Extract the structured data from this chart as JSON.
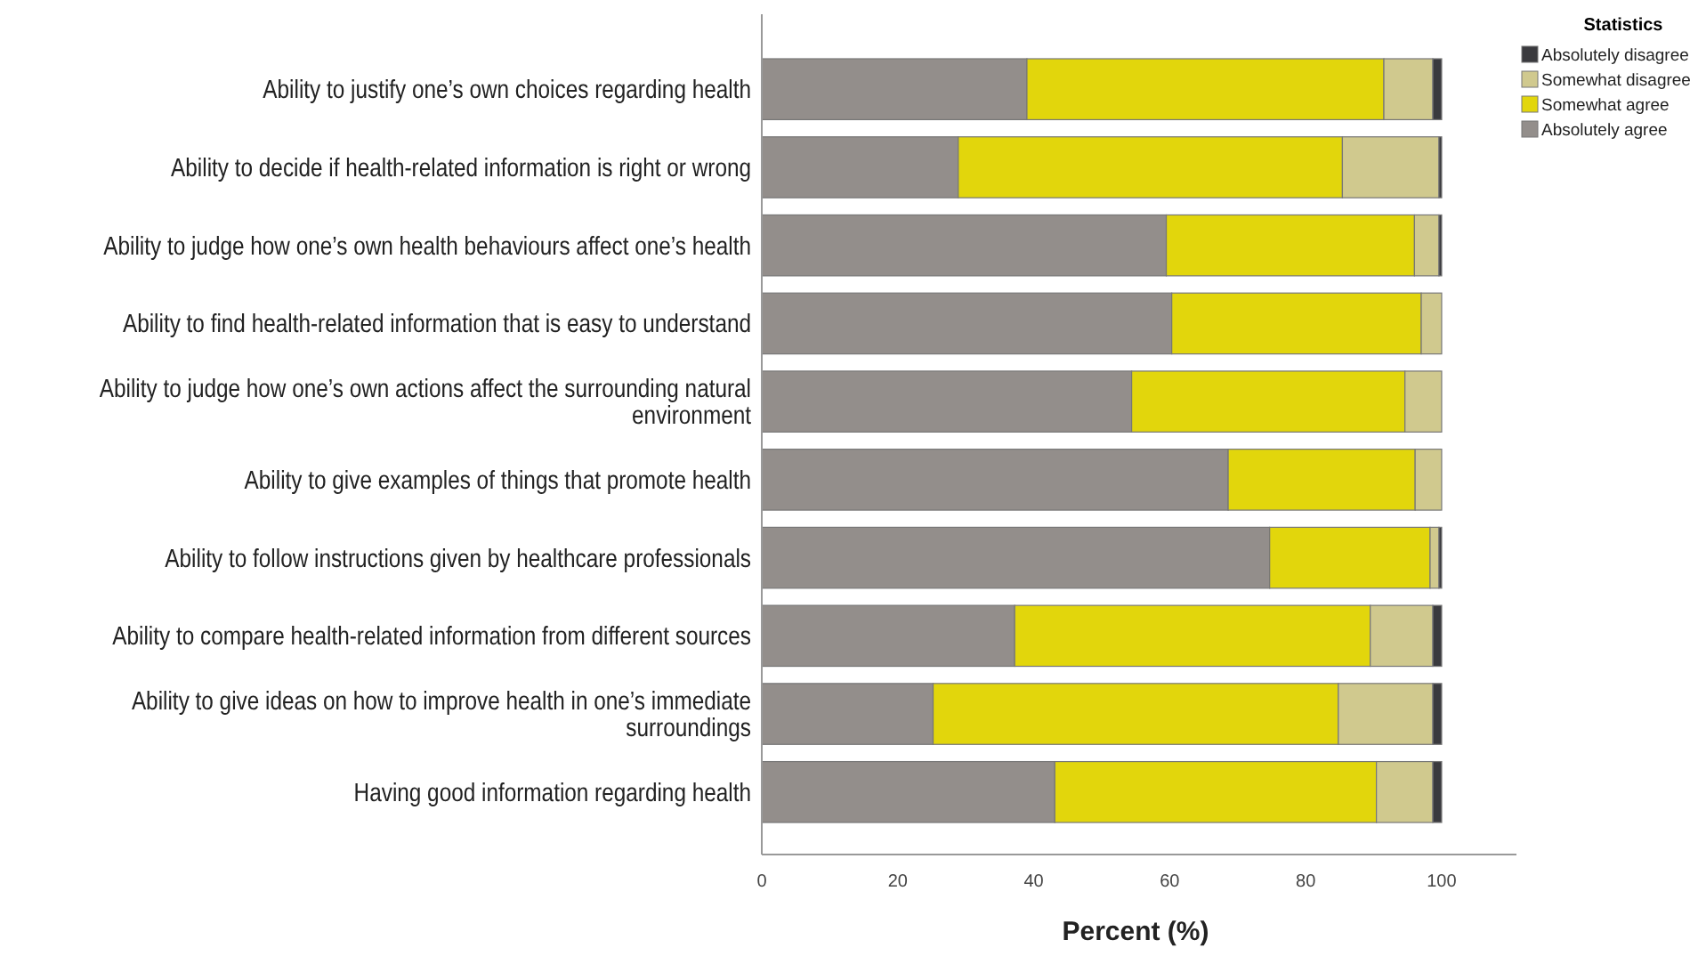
{
  "chart_data": {
    "type": "bar",
    "orientation": "horizontal",
    "stacked": true,
    "categories": [
      "Ability to justify one’s own choices regarding health",
      "Ability to decide if health-related information is right or wrong",
      "Ability to judge how one’s own health behaviours affect one’s health",
      "Ability to find health-related information that is easy to understand",
      "Ability to judge how one’s own actions affect the surrounding natural environment",
      "Ability to give examples of things that promote health",
      "Ability to follow instructions given by healthcare professionals",
      "Ability to compare health-related information from different sources",
      "Ability to give ideas on how to improve health in one’s immediate surroundings",
      "Having good information regarding health"
    ],
    "series": [
      {
        "name": "Absolutely agree",
        "color": "#938e8b",
        "values": [
          39.0,
          28.9,
          59.5,
          60.3,
          54.4,
          68.6,
          74.7,
          37.2,
          25.2,
          43.1
        ]
      },
      {
        "name": "Somewhat agree",
        "color": "#e2d60c",
        "values": [
          52.5,
          56.5,
          36.5,
          36.7,
          40.2,
          27.5,
          23.6,
          52.3,
          59.6,
          47.3
        ]
      },
      {
        "name": "Somewhat disagree",
        "color": "#d0c98e",
        "values": [
          7.2,
          14.2,
          3.6,
          3.0,
          5.4,
          3.9,
          1.3,
          9.2,
          13.9,
          8.3
        ]
      },
      {
        "name": "Absolutely disagree",
        "color": "#3a3a3e",
        "values": [
          1.3,
          0.4,
          0.4,
          0,
          0,
          0,
          0.4,
          1.3,
          1.3,
          1.3
        ]
      }
    ],
    "xlim": [
      0,
      111
    ],
    "xticks": [
      0,
      20,
      40,
      60,
      80,
      100
    ],
    "xlabel": "Percent (%)",
    "legend_title": "Statistics",
    "legend": "top right",
    "grid": false
  }
}
